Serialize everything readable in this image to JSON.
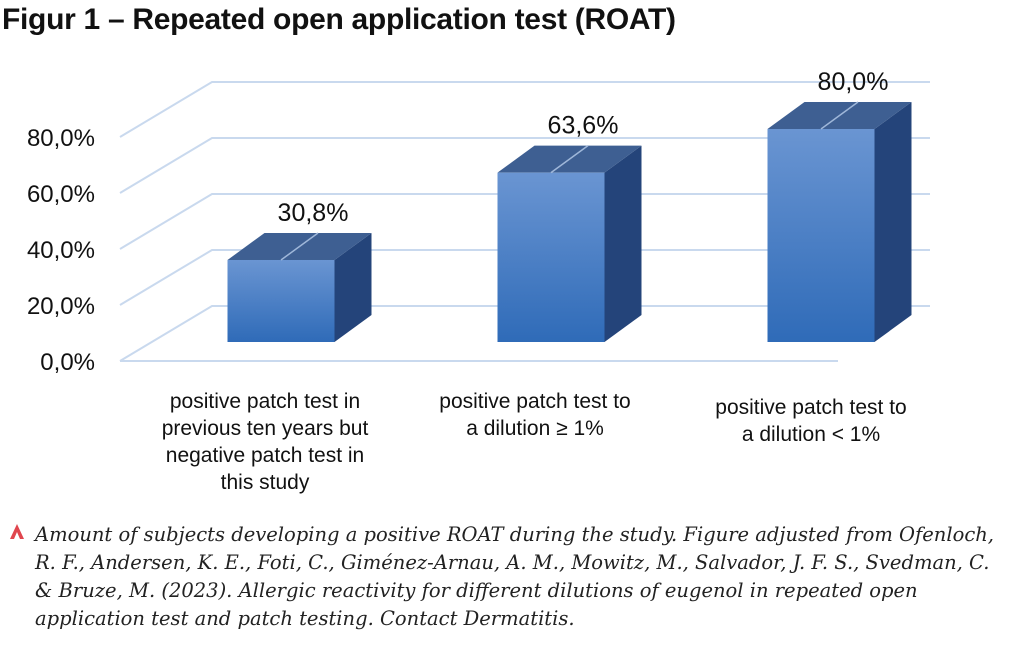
{
  "title": "Figur 1 – Repeated open application test (ROAT)",
  "chart_data": {
    "type": "bar",
    "style": "3d-column",
    "categories": [
      "positive patch test in previous ten years but negative patch test in this study",
      "positive patch test to a dilution ≥ 1%",
      "positive patch test to a dilution < 1%"
    ],
    "category_lines": [
      [
        "positive patch test in",
        "previous ten years but",
        "negative patch test in",
        "this study"
      ],
      [
        "positive patch test to",
        "a dilution ≥ 1%"
      ],
      [
        "positive patch test to",
        "a dilution < 1%"
      ]
    ],
    "values": [
      30.8,
      63.6,
      80.0
    ],
    "data_labels": [
      "30,8%",
      "63,6%",
      "80,0%"
    ],
    "ylim": [
      0,
      80
    ],
    "yticks": [
      0,
      20,
      40,
      60,
      80
    ],
    "ytick_labels": [
      "0,0%",
      "20,0%",
      "40,0%",
      "60,0%",
      "80,0%"
    ],
    "xlabel": "",
    "ylabel": "",
    "grid": true,
    "colors": {
      "bar_front_top": "#6a95d2",
      "bar_front_bottom": "#2f6bb8",
      "bar_top": "#3e5f92",
      "bar_side": "#24447a",
      "grid": "#c9d9ee"
    }
  },
  "caption": {
    "marker_color": "#e0464e",
    "text": "Amount of subjects developing a positive ROAT during the study. Figure adjusted from Ofenloch, R. F., Andersen, K. E., Foti, C., Giménez-Arnau, A. M., Mowitz, M., Salvador, J. F. S., Svedman, C. & Bruze, M. (2023). Allergic reactivity for different dilutions of eugenol in repeated open application test and patch testing. Contact Dermatitis."
  }
}
